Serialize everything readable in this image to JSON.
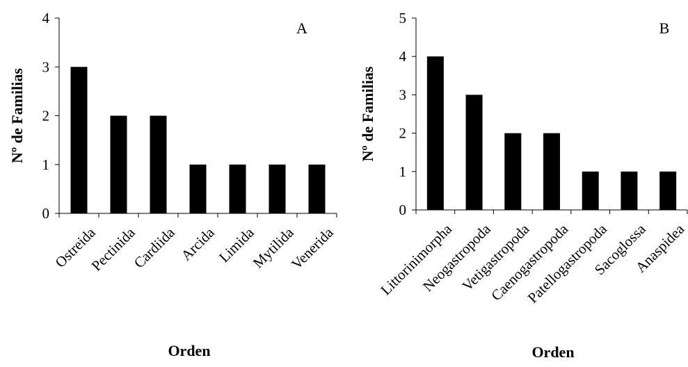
{
  "chart_data": [
    {
      "type": "bar",
      "panel_label": "A",
      "categories": [
        "Ostreida",
        "Pectinida",
        "Cardiida",
        "Arcida",
        "Limida",
        "Mytilida",
        "Venerida"
      ],
      "values": [
        3,
        2,
        2,
        1,
        1,
        1,
        1
      ],
      "xlabel": "Orden",
      "ylabel": "Nº de Familias",
      "ylim": [
        0,
        4
      ],
      "yticks": [
        0,
        1,
        2,
        3,
        4
      ],
      "grid": false,
      "bar_color": "#000000"
    },
    {
      "type": "bar",
      "panel_label": "B",
      "categories": [
        "Littorinimorpha",
        "Neogastropoda",
        "Vetigastropoda",
        "Caenogastropoda",
        "Patellogastropoda",
        "Sacoglossa",
        "Anaspidea"
      ],
      "values": [
        4,
        3,
        2,
        2,
        1,
        1,
        1
      ],
      "xlabel": "Orden",
      "ylabel": "Nº de Familias",
      "ylim": [
        0,
        5
      ],
      "yticks": [
        0,
        1,
        2,
        3,
        4,
        5
      ],
      "grid": false,
      "bar_color": "#000000"
    }
  ]
}
